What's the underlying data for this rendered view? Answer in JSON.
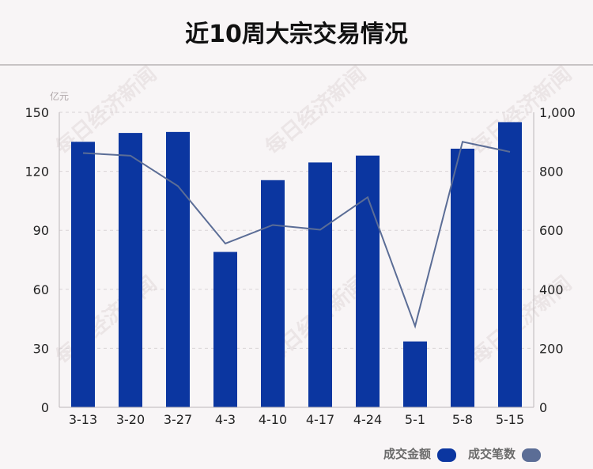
{
  "title": "近10周大宗交易情况",
  "watermark": "每日经济新闻",
  "colors": {
    "bar": "#0b36a0",
    "line": "#5b6d96",
    "grid": "#d9d4d6",
    "axis": "#bdb8ba"
  },
  "chart_data": {
    "type": "bar",
    "categories": [
      "3-13",
      "3-20",
      "3-27",
      "4-3",
      "4-10",
      "4-17",
      "4-24",
      "5-1",
      "5-8",
      "5-15"
    ],
    "series": [
      {
        "name": "成交金额",
        "type": "bar",
        "axis": "left",
        "values": [
          135,
          139.5,
          140,
          79,
          115.5,
          124.5,
          128,
          33.5,
          131.5,
          145
        ]
      },
      {
        "name": "成交笔数",
        "type": "line",
        "axis": "right",
        "values": [
          862,
          853,
          750,
          555,
          618,
          602,
          712,
          275,
          900,
          866
        ]
      }
    ],
    "ylabel_left": "亿元",
    "ylim_left": [
      0,
      150
    ],
    "yticks_left": [
      "0",
      "30",
      "60",
      "90",
      "120",
      "150"
    ],
    "ylim_right": [
      0,
      1000
    ],
    "yticks_right": [
      "0",
      "200",
      "400",
      "600",
      "800",
      "1,000"
    ],
    "grid": true,
    "legend": "bottom-right"
  }
}
